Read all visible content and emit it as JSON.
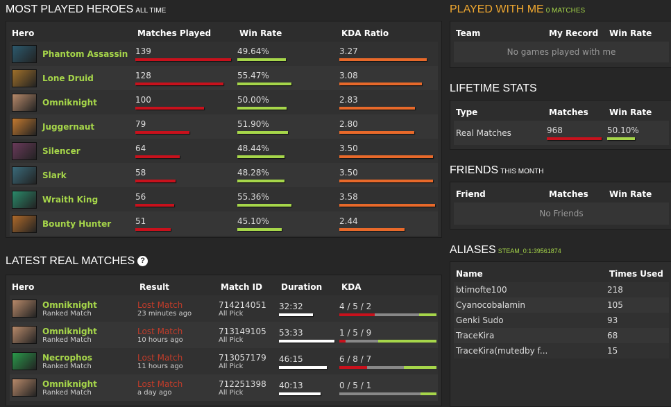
{
  "most_played": {
    "title": "MOST PLAYED HEROES",
    "subtitle": "ALL TIME",
    "headers": [
      "Hero",
      "Matches Played",
      "Win Rate",
      "KDA Ratio"
    ],
    "rows": [
      {
        "hero": "Phantom Assassin",
        "matches": "139",
        "win_rate": "49.64%",
        "kda": "3.27",
        "color": "#2c5a6e"
      },
      {
        "hero": "Lone Druid",
        "matches": "128",
        "win_rate": "55.47%",
        "kda": "3.08",
        "color": "#a0702a"
      },
      {
        "hero": "Omniknight",
        "matches": "100",
        "win_rate": "50.00%",
        "kda": "2.83",
        "color": "#b88a6a"
      },
      {
        "hero": "Juggernaut",
        "matches": "79",
        "win_rate": "51.90%",
        "kda": "2.80",
        "color": "#c47a30"
      },
      {
        "hero": "Silencer",
        "matches": "64",
        "win_rate": "48.44%",
        "kda": "3.50",
        "color": "#6a3a5a"
      },
      {
        "hero": "Slark",
        "matches": "58",
        "win_rate": "48.28%",
        "kda": "3.50",
        "color": "#3a6a7a"
      },
      {
        "hero": "Wraith King",
        "matches": "56",
        "win_rate": "55.36%",
        "kda": "3.58",
        "color": "#2a8a6a"
      },
      {
        "hero": "Bounty Hunter",
        "matches": "51",
        "win_rate": "45.10%",
        "kda": "2.44",
        "color": "#b06a2a"
      }
    ]
  },
  "latest": {
    "title": "LATEST REAL MATCHES",
    "help": "?",
    "headers": [
      "Hero",
      "Result",
      "Match ID",
      "Duration",
      "KDA"
    ],
    "rows": [
      {
        "hero": "Omniknight",
        "type": "Ranked Match",
        "result": "Lost Match",
        "when": "23 minutes ago",
        "id": "714214051",
        "mode": "All Pick",
        "duration": "32:32",
        "kda": "4 / 5 / 2",
        "k": 4,
        "d": 5,
        "a": 2,
        "color": "#b88a6a"
      },
      {
        "hero": "Omniknight",
        "type": "Ranked Match",
        "result": "Lost Match",
        "when": "10 hours ago",
        "id": "713149105",
        "mode": "All Pick",
        "duration": "53:33",
        "kda": "1 / 5 / 9",
        "k": 1,
        "d": 5,
        "a": 9,
        "color": "#b88a6a"
      },
      {
        "hero": "Necrophos",
        "type": "Ranked Match",
        "result": "Lost Match",
        "when": "11 hours ago",
        "id": "713057179",
        "mode": "All Pick",
        "duration": "46:15",
        "kda": "6 / 8 / 7",
        "k": 6,
        "d": 8,
        "a": 7,
        "color": "#2a9a4a"
      },
      {
        "hero": "Omniknight",
        "type": "Ranked Match",
        "result": "Lost Match",
        "when": "a day ago",
        "id": "712251398",
        "mode": "All Pick",
        "duration": "40:13",
        "kda": "0 / 5 / 1",
        "k": 0,
        "d": 5,
        "a": 1,
        "color": "#b88a6a"
      }
    ]
  },
  "played_with": {
    "title": "PLAYED WITH ME",
    "subtitle": "0 MATCHES",
    "headers": [
      "Team",
      "My Record",
      "Win Rate"
    ],
    "empty": "No games played with me"
  },
  "lifetime": {
    "title": "LIFETIME STATS",
    "headers": [
      "Type",
      "Matches",
      "Win Rate"
    ],
    "rows": [
      {
        "type": "Real Matches",
        "matches": "968",
        "win_rate": "50.10%"
      }
    ]
  },
  "friends": {
    "title": "FRIENDS",
    "subtitle": "THIS MONTH",
    "headers": [
      "Friend",
      "Matches",
      "Win Rate"
    ],
    "empty": "No Friends"
  },
  "aliases": {
    "title": "ALIASES",
    "subtitle": "STEAM_0:1:39561874",
    "headers": [
      "Name",
      "Times Used"
    ],
    "rows": [
      {
        "name": "btimofte100",
        "count": "218"
      },
      {
        "name": "Cyanocobalamin",
        "count": "105"
      },
      {
        "name": "Genki Sudo",
        "count": "93"
      },
      {
        "name": "TraceKira",
        "count": "68"
      },
      {
        "name": "TraceKira(mutedby f...",
        "count": "15"
      }
    ]
  }
}
